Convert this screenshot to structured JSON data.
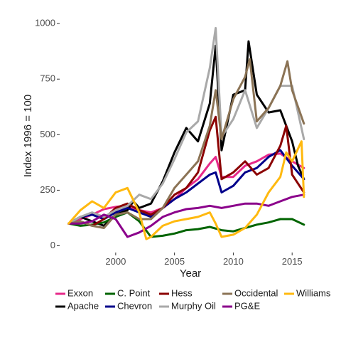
{
  "chart_data": {
    "type": "line",
    "xlabel": "Year",
    "ylabel": "Index 1996 = 100",
    "xlim": [
      1995.6,
      2016.8
    ],
    "ylim": [
      -40,
      1010
    ],
    "x_ticks": [
      2000,
      2005,
      2010,
      2015
    ],
    "x_tick_labels": [
      "2000",
      "2005",
      "2010",
      "2015"
    ],
    "y_ticks": [
      0,
      250,
      500,
      750,
      1000
    ],
    "y_tick_labels": [
      "0",
      "250",
      "500",
      "750",
      "1000"
    ],
    "grid": false,
    "legend_position": "bottom",
    "series": [
      {
        "name": "Exxon",
        "color": "#e7298a",
        "x": [
          1996,
          1997,
          1998,
          1999,
          2000,
          2001,
          2002,
          2003,
          2004,
          2005,
          2006,
          2007,
          2008,
          2008.5,
          2009,
          2010,
          2011,
          2012,
          2013,
          2014,
          2015,
          2016
        ],
        "y": [
          100,
          120,
          140,
          165,
          175,
          180,
          160,
          150,
          170,
          210,
          260,
          300,
          370,
          400,
          310,
          310,
          360,
          380,
          410,
          415,
          380,
          350
        ]
      },
      {
        "name": "Apache",
        "color": "#000000",
        "x": [
          1996,
          1997,
          1998,
          1999,
          2000,
          2001,
          2001.5,
          2002,
          2003,
          2004,
          2005,
          2006,
          2007,
          2008,
          2008.5,
          2009,
          2010,
          2011,
          2011.3,
          2012,
          2013,
          2014,
          2015,
          2015.5,
          2016
        ],
        "y": [
          100,
          130,
          110,
          90,
          140,
          160,
          200,
          170,
          190,
          290,
          420,
          530,
          470,
          640,
          900,
          430,
          680,
          700,
          920,
          680,
          600,
          610,
          470,
          360,
          300
        ]
      },
      {
        "name": "C. Point",
        "color": "#006400",
        "x": [
          1996,
          1997,
          1998,
          1999,
          2000,
          2001,
          2002,
          2003,
          2004,
          2005,
          2006,
          2007,
          2008,
          2009,
          2010,
          2011,
          2012,
          2013,
          2014,
          2015,
          2016
        ],
        "y": [
          100,
          90,
          95,
          105,
          130,
          150,
          110,
          40,
          45,
          55,
          70,
          75,
          85,
          70,
          65,
          80,
          95,
          105,
          120,
          120,
          95
        ]
      },
      {
        "name": "Chevron",
        "color": "#00008b",
        "x": [
          1996,
          1997,
          1998,
          1999,
          2000,
          2001,
          2002,
          2003,
          2004,
          2005,
          2006,
          2007,
          2008,
          2008.5,
          2009,
          2010,
          2011,
          2012,
          2013,
          2014,
          2015,
          2016
        ],
        "y": [
          100,
          130,
          140,
          120,
          150,
          170,
          150,
          130,
          170,
          210,
          240,
          280,
          320,
          330,
          240,
          270,
          330,
          350,
          400,
          430,
          360,
          300
        ]
      },
      {
        "name": "Hess",
        "color": "#8b0000",
        "x": [
          1996,
          1997,
          1998,
          1999,
          2000,
          2001,
          2002,
          2003,
          2004,
          2005,
          2006,
          2007,
          2008,
          2008.5,
          2009,
          2010,
          2011,
          2012,
          2013,
          2014,
          2014.5,
          2015,
          2016
        ],
        "y": [
          100,
          110,
          90,
          120,
          170,
          190,
          160,
          140,
          170,
          230,
          260,
          330,
          520,
          580,
          300,
          330,
          380,
          320,
          350,
          450,
          540,
          320,
          240
        ]
      },
      {
        "name": "Murphy Oil",
        "color": "#a9a9a9",
        "x": [
          1996,
          1997,
          1998,
          1999,
          2000,
          2001,
          2002,
          2003,
          2004,
          2005,
          2006,
          2007,
          2008,
          2008.5,
          2009,
          2010,
          2011,
          2012,
          2013,
          2014,
          2015,
          2016
        ],
        "y": [
          100,
          130,
          150,
          130,
          160,
          180,
          230,
          210,
          280,
          390,
          510,
          560,
          800,
          980,
          490,
          570,
          700,
          530,
          620,
          720,
          720,
          480
        ]
      },
      {
        "name": "Occidental",
        "color": "#8b7355",
        "x": [
          1996,
          1997,
          1998,
          1999,
          2000,
          2001,
          2002,
          2003,
          2004,
          2005,
          2006,
          2007,
          2008,
          2008.5,
          2009,
          2010,
          2011,
          2011.4,
          2012,
          2013,
          2014,
          2014.6,
          2015,
          2016
        ],
        "y": [
          100,
          110,
          90,
          80,
          140,
          150,
          120,
          120,
          170,
          260,
          320,
          380,
          540,
          700,
          480,
          660,
          760,
          840,
          560,
          620,
          720,
          830,
          700,
          550
        ]
      },
      {
        "name": "PG&E",
        "color": "#8b008b",
        "x": [
          1996,
          1997,
          1998,
          1999,
          2000,
          2001,
          2002,
          2003,
          2004,
          2005,
          2006,
          2007,
          2008,
          2009,
          2010,
          2011,
          2012,
          2013,
          2014,
          2015,
          2016
        ],
        "y": [
          100,
          100,
          110,
          140,
          120,
          40,
          60,
          90,
          130,
          150,
          165,
          170,
          180,
          170,
          180,
          190,
          190,
          180,
          200,
          220,
          230
        ]
      },
      {
        "name": "Williams",
        "color": "#ffb90f",
        "x": [
          1996,
          1997,
          1998,
          1999,
          2000,
          2001,
          2002,
          2002.6,
          2003,
          2004,
          2005,
          2006,
          2007,
          2008,
          2008.5,
          2009,
          2010,
          2011,
          2012,
          2013,
          2014,
          2014.5,
          2015,
          2015.8,
          2016
        ],
        "y": [
          100,
          160,
          200,
          170,
          240,
          260,
          150,
          30,
          40,
          90,
          110,
          120,
          130,
          150,
          100,
          40,
          50,
          80,
          140,
          240,
          310,
          420,
          380,
          470,
          220
        ]
      }
    ]
  }
}
